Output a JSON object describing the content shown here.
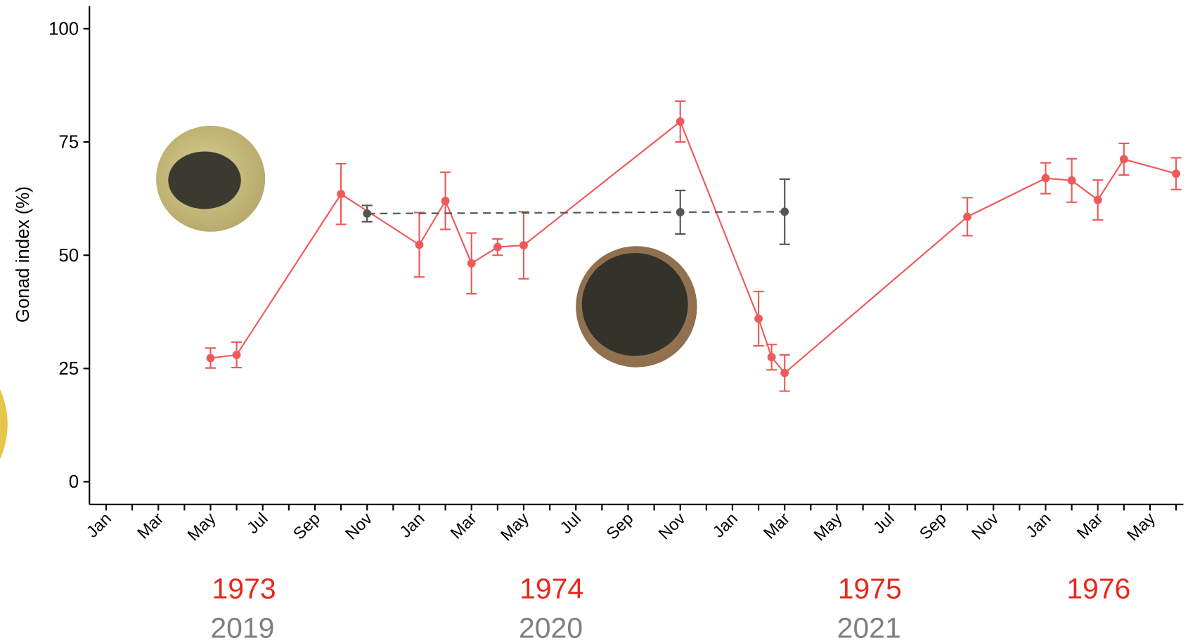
{
  "chart_data": {
    "type": "line",
    "ylabel": "Gonad index (%)",
    "xlim": [
      -0.64,
      41.28
    ],
    "xticks": [
      {
        "value": 0,
        "label": "Jan"
      },
      {
        "value": 1,
        "label": null
      },
      {
        "value": 2,
        "label": "Mar"
      },
      {
        "value": 3,
        "label": null
      },
      {
        "value": 4,
        "label": "May"
      },
      {
        "value": 5,
        "label": null
      },
      {
        "value": 6,
        "label": "Jul"
      },
      {
        "value": 7,
        "label": null
      },
      {
        "value": 8,
        "label": "Sep"
      },
      {
        "value": 9,
        "label": null
      },
      {
        "value": 10,
        "label": "Nov"
      },
      {
        "value": 11,
        "label": null
      },
      {
        "value": 12,
        "label": "Jan"
      },
      {
        "value": 13,
        "label": null
      },
      {
        "value": 14,
        "label": "Mar"
      },
      {
        "value": 15,
        "label": null
      },
      {
        "value": 16,
        "label": "May"
      },
      {
        "value": 17,
        "label": null
      },
      {
        "value": 18,
        "label": "Jul"
      },
      {
        "value": 19,
        "label": null
      },
      {
        "value": 20,
        "label": "Sep"
      },
      {
        "value": 21,
        "label": null
      },
      {
        "value": 22,
        "label": "Nov"
      },
      {
        "value": 23,
        "label": null
      },
      {
        "value": 24,
        "label": "Jan"
      },
      {
        "value": 25,
        "label": null
      },
      {
        "value": 26,
        "label": "Mar"
      },
      {
        "value": 27,
        "label": null
      },
      {
        "value": 28,
        "label": "May"
      },
      {
        "value": 29,
        "label": null
      },
      {
        "value": 30,
        "label": "Jul"
      },
      {
        "value": 31,
        "label": null
      },
      {
        "value": 32,
        "label": "Sep"
      },
      {
        "value": 33,
        "label": null
      },
      {
        "value": 34,
        "label": "Nov"
      },
      {
        "value": 35,
        "label": null
      },
      {
        "value": 36,
        "label": "Jan"
      },
      {
        "value": 37,
        "label": null
      },
      {
        "value": 38,
        "label": "Mar"
      },
      {
        "value": 39,
        "label": null
      },
      {
        "value": 40,
        "label": "May"
      },
      {
        "value": 41,
        "label": null
      }
    ],
    "ylim": [
      -5,
      105
    ],
    "yticks": [
      0,
      25,
      50,
      75,
      100
    ],
    "year_labels": [
      {
        "color": "#e8281a",
        "labels": [
          "1973",
          "1974",
          "1975",
          "1976"
        ]
      },
      {
        "color": "#7f7f7f",
        "labels": [
          "2019",
          "2020",
          "2021"
        ]
      }
    ],
    "series": [
      {
        "color": "#ee5a5a",
        "line_style": "solid",
        "x": [
          4,
          5,
          9,
          12,
          13,
          14,
          15,
          16,
          22,
          25,
          25.5,
          26,
          33,
          36,
          37,
          38,
          39,
          41
        ],
        "values": [
          27.3,
          28,
          63.5,
          52.3,
          62,
          48.2,
          51.8,
          52.2,
          79.5,
          36,
          27.5,
          24,
          58.5,
          67,
          66.5,
          62.2,
          71.2,
          68
        ],
        "errors": [
          2.2,
          2.8,
          6.7,
          7.1,
          6.3,
          6.7,
          1.8,
          7.4,
          4.5,
          6,
          2.8,
          4,
          4.2,
          3.4,
          4.8,
          4.4,
          3.5,
          3.5
        ]
      },
      {
        "color": "#555555",
        "line_style": "dashed",
        "x": [
          10,
          22,
          26
        ],
        "values": [
          59.2,
          59.5,
          59.6
        ],
        "errors": [
          1.8,
          4.8,
          7.2
        ]
      }
    ]
  }
}
